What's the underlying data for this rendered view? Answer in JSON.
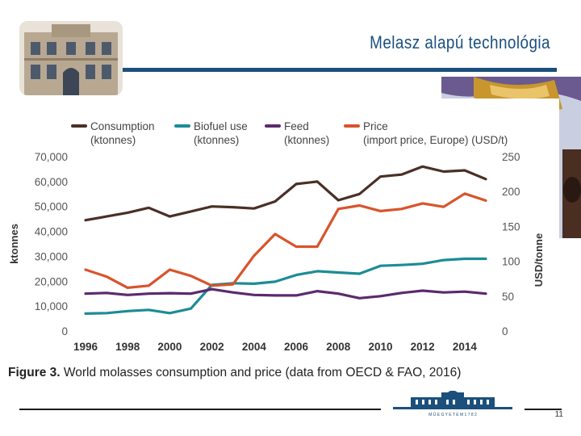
{
  "slide": {
    "title": "Melasz alapú technológia",
    "page_number": "11",
    "logo_text": "M Ű E G Y E T E M   1 7 8 2"
  },
  "colors": {
    "title": "#1b4f7c",
    "consumption": "#4a3026",
    "biofuel": "#1c8c96",
    "feed": "#5b2a6e",
    "price": "#d8542c",
    "axis_text": "#555555"
  },
  "chart_data": {
    "type": "line",
    "title": "Figure 3. World molasses consumption and price (data from OECD & FAO, 2016)",
    "caption_label": "Figure 3.",
    "caption_text": "World molasses consumption and price (data from OECD & FAO, 2016)",
    "ylabel": "ktonnes",
    "y2label": "USD/tonne",
    "xlim": [
      1996,
      2015
    ],
    "ylim": [
      0,
      70000
    ],
    "y2lim": [
      0,
      250
    ],
    "x_ticks": [
      "1996",
      "1998",
      "2000",
      "2002",
      "2004",
      "2006",
      "2008",
      "2010",
      "2012",
      "2014"
    ],
    "y_ticks": [
      "0",
      "10,000",
      "20,000",
      "30,000",
      "40,000",
      "50,000",
      "60,000",
      "70,000"
    ],
    "y2_ticks": [
      "0",
      "50",
      "100",
      "150",
      "200",
      "250"
    ],
    "legend_position": "top",
    "x": [
      1996,
      1997,
      1998,
      1999,
      2000,
      2001,
      2002,
      2003,
      2004,
      2005,
      2006,
      2007,
      2008,
      2009,
      2010,
      2011,
      2012,
      2013,
      2014,
      2015
    ],
    "series": [
      {
        "name": "Consumption",
        "unit": "(ktonnes)",
        "axis": "left",
        "color": "#4a3026",
        "values": [
          44500,
          46000,
          47500,
          49500,
          46000,
          48000,
          50000,
          49700,
          49200,
          52000,
          59000,
          60000,
          52500,
          55000,
          62000,
          62800,
          66000,
          64000,
          64500,
          61000
        ]
      },
      {
        "name": "Biofuel use",
        "unit": "(ktonnes)",
        "axis": "left",
        "color": "#1c8c96",
        "values": [
          7000,
          7200,
          8000,
          8500,
          7200,
          9000,
          18500,
          19200,
          19000,
          19800,
          22500,
          24000,
          23500,
          23000,
          26200,
          26500,
          27000,
          28500,
          29000,
          29000
        ]
      },
      {
        "name": "Feed",
        "unit": "(ktonnes)",
        "axis": "left",
        "color": "#5b2a6e",
        "values": [
          15000,
          15300,
          14500,
          15000,
          15200,
          15000,
          16800,
          15500,
          14500,
          14300,
          14300,
          16000,
          15000,
          13200,
          14000,
          15300,
          16200,
          15500,
          15800,
          15000
        ]
      },
      {
        "name": "Price",
        "unit": "(import price, Europe) (USD/t)",
        "axis": "right",
        "color": "#d8542c",
        "values": [
          88,
          78,
          62,
          65,
          88,
          79,
          65,
          67,
          108,
          139,
          121,
          121,
          175,
          180,
          172,
          175,
          183,
          178,
          197,
          187
        ]
      }
    ]
  }
}
